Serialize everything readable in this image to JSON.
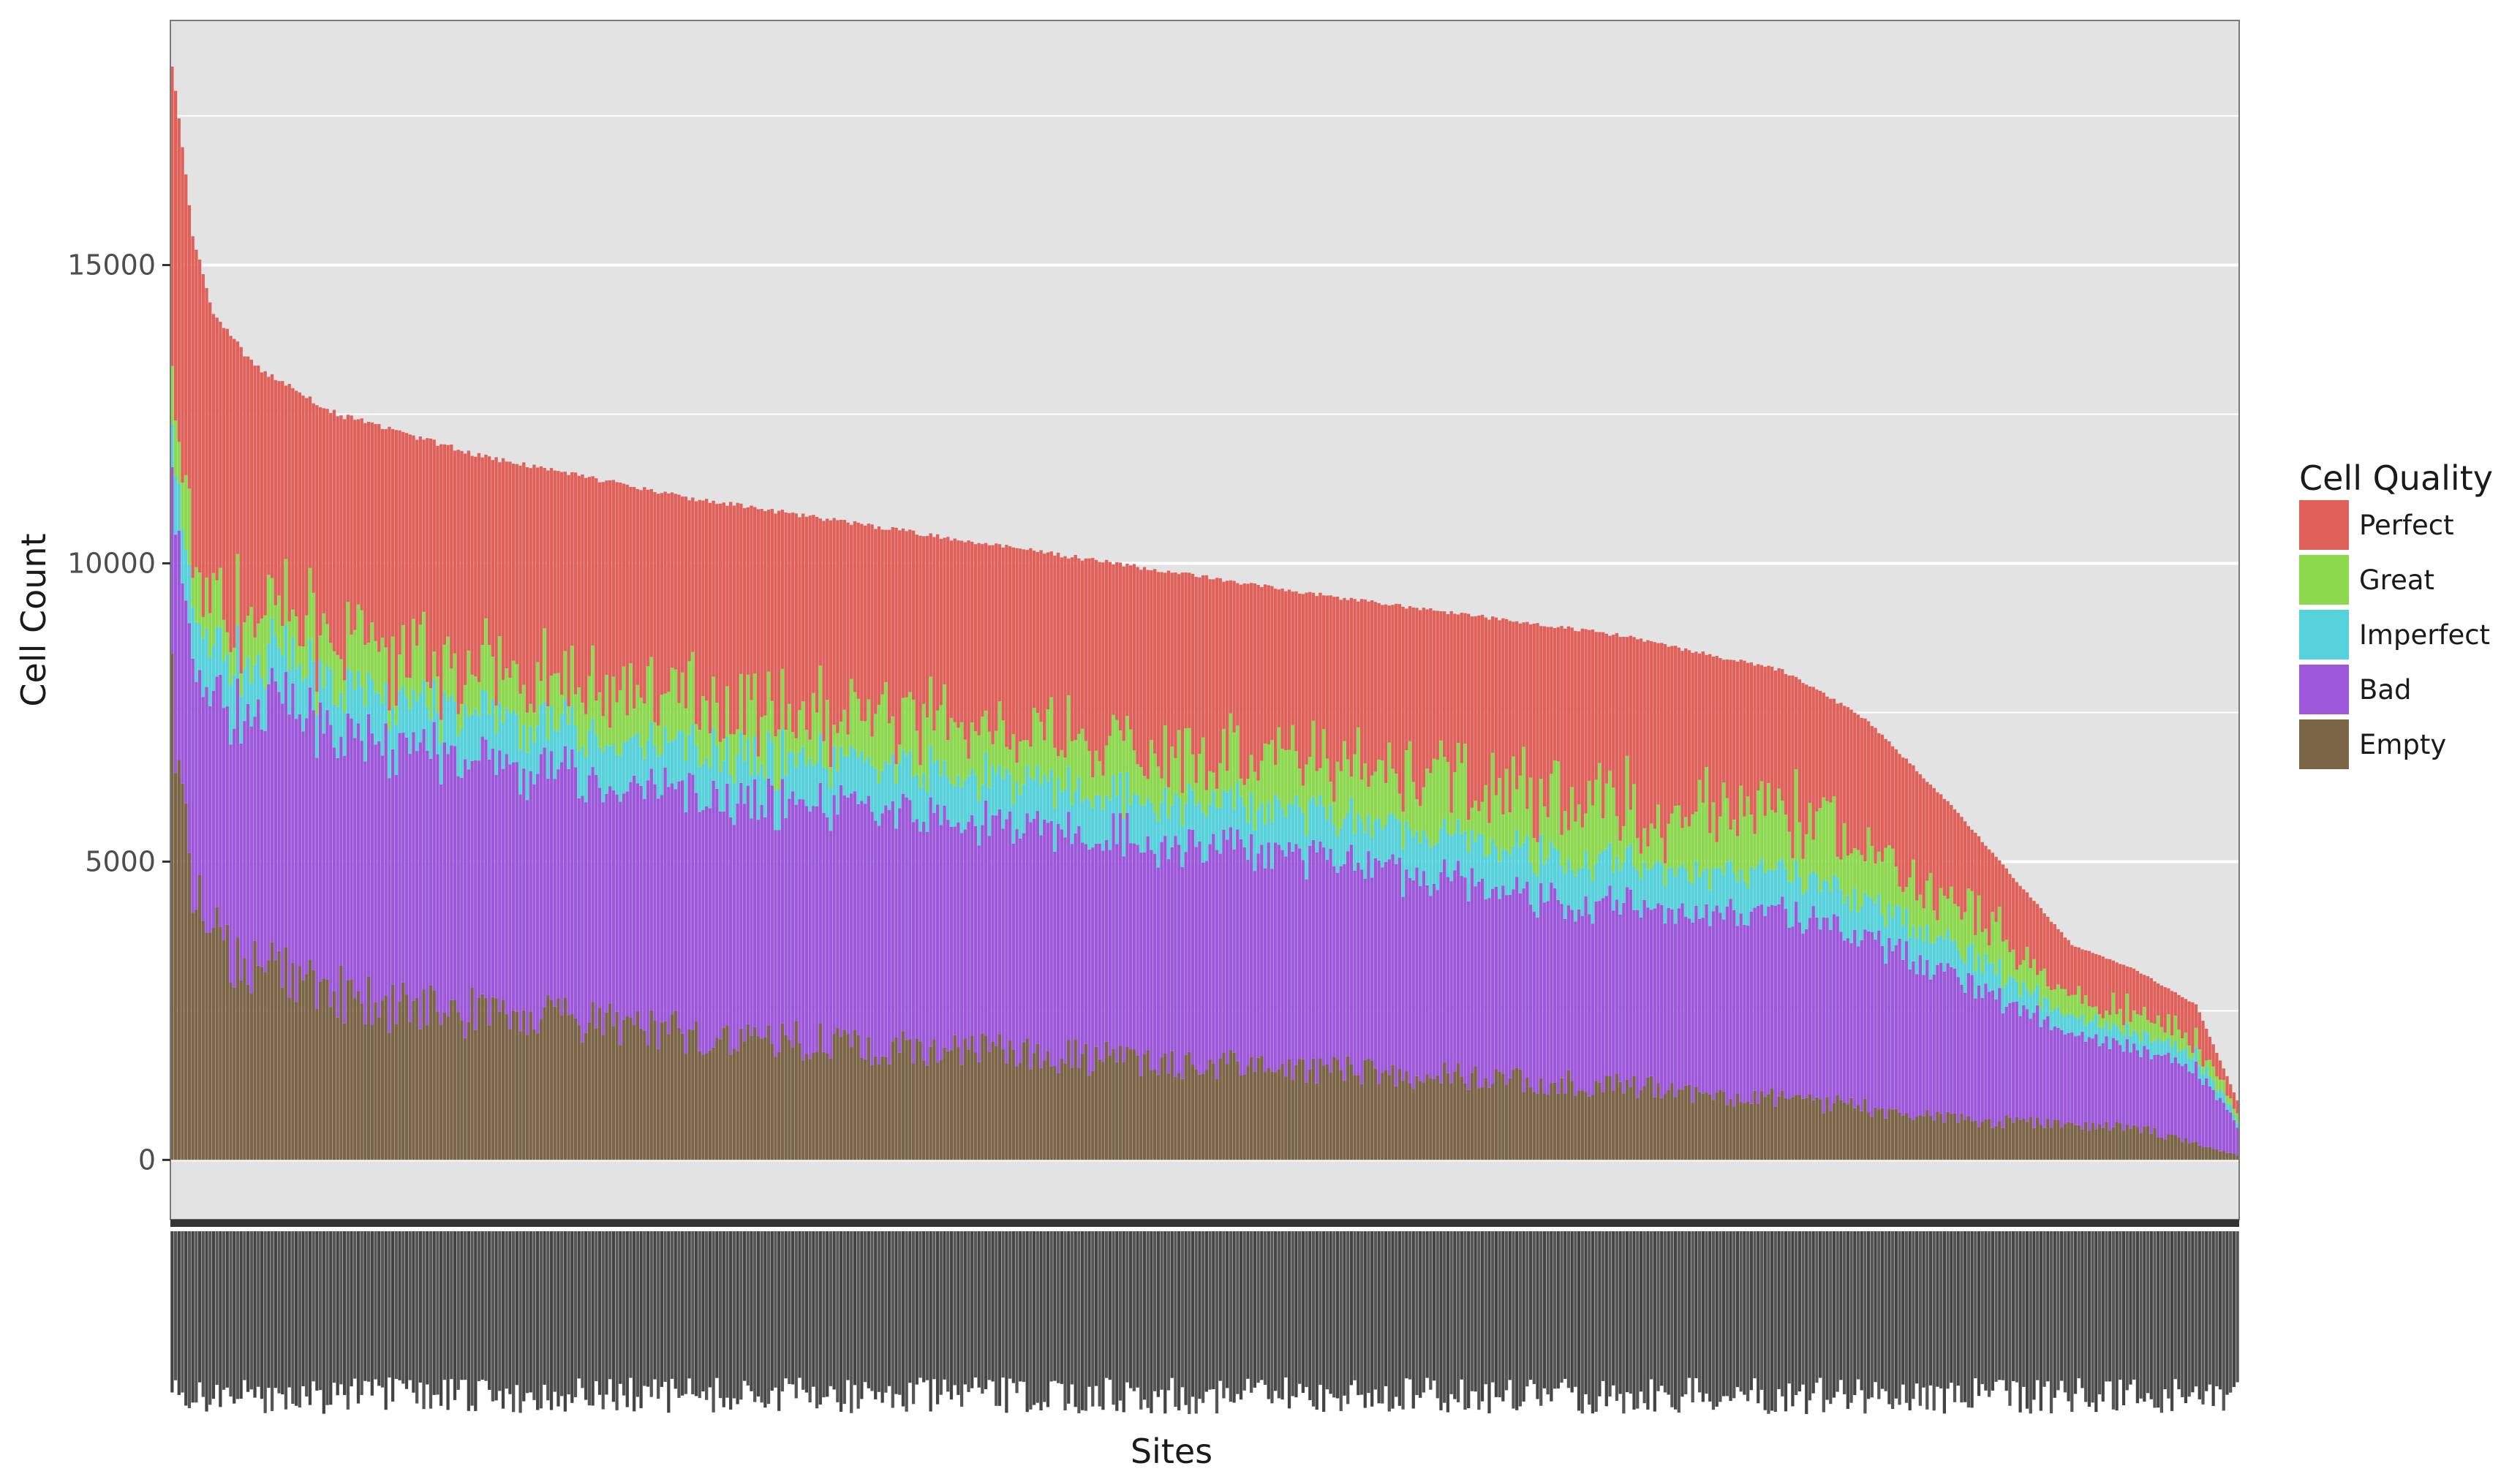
{
  "chart_data": {
    "type": "bar",
    "stacked": true,
    "title": "",
    "xlabel": "Sites",
    "ylabel": "Cell Count",
    "ylim": [
      -1000,
      19100
    ],
    "y_ticks": [
      0,
      5000,
      10000,
      15000
    ],
    "y_tick_labels": [
      "0",
      "5000",
      "10000",
      "15000"
    ],
    "x_tick_labels": "present but illegible (several hundred overlapping rotated site labels)",
    "n_sites": 600,
    "grid": true,
    "legend": {
      "title": "Cell Quality",
      "position": "right",
      "entries": [
        "Perfect",
        "Great",
        "Imperfect",
        "Bad",
        "Empty"
      ]
    },
    "colors": {
      "Perfect": "#E0605A",
      "Great": "#8CD94E",
      "Imperfect": "#55D2DB",
      "Bad": "#9D57DA",
      "Empty": "#7B6547",
      "panel_bg": "#E3E3E3",
      "grid": "#FFFFFF"
    },
    "series_stack_order_bottom_to_top": [
      "Empty",
      "Bad",
      "Imperfect",
      "Great",
      "Perfect"
    ],
    "sorting": "sites sorted by descending total cell count",
    "total_profile": {
      "site_fraction": [
        0,
        0.01,
        0.02,
        0.04,
        0.08,
        0.15,
        0.25,
        0.4,
        0.55,
        0.7,
        0.78,
        0.82,
        0.86,
        0.89,
        0.92,
        0.95,
        0.98,
        1.0
      ],
      "total": [
        18400,
        15500,
        14200,
        13300,
        12500,
        11800,
        11100,
        10300,
        9500,
        8800,
        8200,
        7400,
        6000,
        4800,
        3600,
        3200,
        2600,
        1000
      ]
    },
    "empty_profile": {
      "site_fraction": [
        0,
        0.01,
        0.03,
        0.1,
        0.3,
        0.5,
        0.7,
        0.8,
        0.88,
        0.95,
        1.0
      ],
      "value": [
        7400,
        4400,
        3300,
        2600,
        2000,
        1600,
        1250,
        950,
        650,
        550,
        80
      ]
    },
    "fractions_of_non_empty": {
      "bad": {
        "site_fraction": [
          0,
          0.05,
          0.5,
          0.7,
          0.85,
          1.0
        ],
        "value": [
          0.33,
          0.45,
          0.45,
          0.4,
          0.45,
          0.55
        ]
      },
      "imperfect": {
        "site_fraction": [
          0,
          0.5,
          1.0
        ],
        "value": [
          0.08,
          0.09,
          0.1
        ]
      },
      "great": {
        "site_fraction": [
          0,
          0.5,
          0.75,
          1.0
        ],
        "value": [
          0.07,
          0.09,
          0.13,
          0.1
        ]
      }
    },
    "representative_bars": [
      {
        "site_index": 0,
        "Empty": 7400,
        "Bad": 3600,
        "Imperfect": 800,
        "Great": 1600,
        "Perfect": 5000
      },
      {
        "site_index": 150,
        "Empty": 2400,
        "Bad": 3600,
        "Imperfect": 700,
        "Great": 650,
        "Perfect": 4200
      },
      {
        "site_index": 300,
        "Empty": 1700,
        "Bad": 3100,
        "Imperfect": 750,
        "Great": 700,
        "Perfect": 3700
      },
      {
        "site_index": 450,
        "Empty": 1050,
        "Bad": 2400,
        "Imperfect": 600,
        "Great": 900,
        "Perfect": 2500
      },
      {
        "site_index": 599,
        "Empty": 80,
        "Bad": 500,
        "Imperfect": 100,
        "Great": 100,
        "Perfect": 220
      }
    ]
  }
}
